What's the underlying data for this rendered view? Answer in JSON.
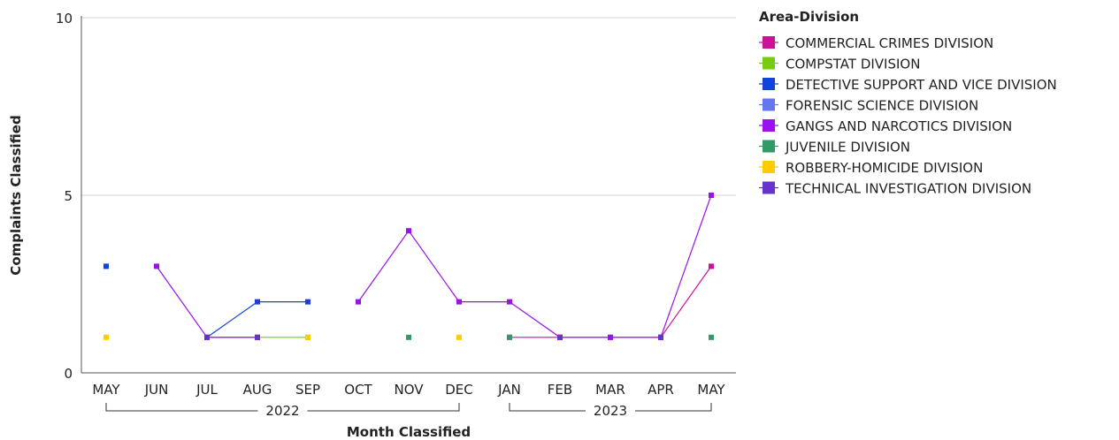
{
  "chart_data": {
    "type": "line",
    "xlabel": "Month Classified",
    "ylabel": "Complaints Classified",
    "ylim": [
      0,
      10
    ],
    "yticks": [
      "0",
      "5",
      "10"
    ],
    "categories": [
      "MAY",
      "JUN",
      "JUL",
      "AUG",
      "SEP",
      "OCT",
      "NOV",
      "DEC",
      "JAN",
      "FEB",
      "MAR",
      "APR",
      "MAY"
    ],
    "year_groups": [
      {
        "label": "2022",
        "start": 0,
        "end": 7
      },
      {
        "label": "2023",
        "start": 8,
        "end": 12
      }
    ],
    "legend_title": "Area-Division",
    "legend_position": "right",
    "grid": true,
    "series": [
      {
        "name": "COMMERCIAL CRIMES DIVISION",
        "color": "#cc1199",
        "values": [
          null,
          null,
          null,
          null,
          null,
          null,
          null,
          null,
          1,
          1,
          1,
          1,
          3
        ]
      },
      {
        "name": "COMPSTAT DIVISION",
        "color": "#77cc11",
        "values": [
          null,
          null,
          null,
          1,
          1,
          null,
          null,
          null,
          null,
          null,
          null,
          null,
          null
        ]
      },
      {
        "name": "DETECTIVE SUPPORT AND VICE DIVISION",
        "color": "#1144dd",
        "values": [
          3,
          null,
          1,
          2,
          2,
          null,
          null,
          null,
          null,
          null,
          null,
          null,
          null
        ]
      },
      {
        "name": "FORENSIC SCIENCE DIVISION",
        "color": "#6677ee",
        "values": [
          null,
          null,
          null,
          null,
          null,
          null,
          null,
          null,
          null,
          null,
          null,
          null,
          null
        ]
      },
      {
        "name": "GANGS AND NARCOTICS DIVISION",
        "color": "#9911ee",
        "values": [
          null,
          3,
          1,
          1,
          null,
          2,
          4,
          2,
          2,
          1,
          1,
          1,
          5
        ]
      },
      {
        "name": "JUVENILE DIVISION",
        "color": "#339966",
        "values": [
          null,
          null,
          null,
          null,
          null,
          null,
          1,
          null,
          1,
          null,
          null,
          null,
          1
        ]
      },
      {
        "name": "ROBBERY-HOMICIDE DIVISION",
        "color": "#ffcc00",
        "values": [
          1,
          null,
          null,
          null,
          1,
          null,
          null,
          1,
          null,
          null,
          null,
          null,
          null
        ]
      },
      {
        "name": "TECHNICAL INVESTIGATION DIVISION",
        "color": "#6633cc",
        "values": [
          null,
          null,
          1,
          1,
          null,
          null,
          null,
          null,
          null,
          1,
          null,
          1,
          null
        ]
      }
    ]
  }
}
